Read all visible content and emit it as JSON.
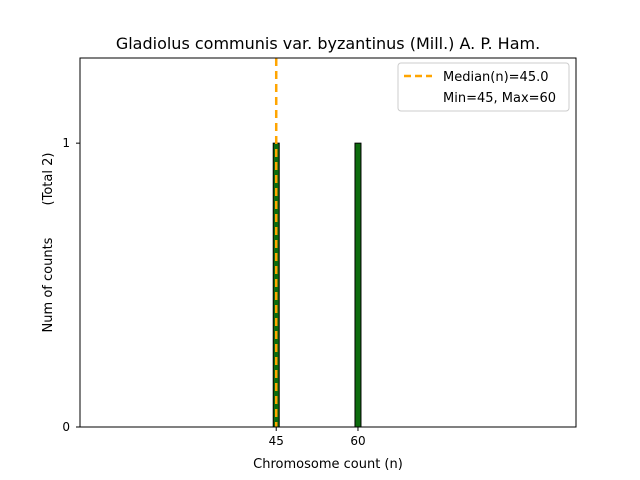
{
  "chart_data": {
    "type": "bar",
    "title": "Gladiolus communis var. byzantinus (Mill.) A. P. Ham.",
    "xlabel": "Chromosome count (n)",
    "ylabel": "Num of counts",
    "ylabel_note": "(Total 2)",
    "x_ticks": [
      45,
      60
    ],
    "y_ticks": [
      0,
      1
    ],
    "xlim": [
      9,
      100
    ],
    "ylim": [
      0,
      1.3
    ],
    "bars": [
      {
        "x": 45,
        "value": 1
      },
      {
        "x": 60,
        "value": 1
      }
    ],
    "median": 45.0,
    "min": 45,
    "max": 60,
    "legend": {
      "placement": "upper right",
      "entries": [
        {
          "label": "Median(n)=45.0",
          "style": "dashed-line"
        },
        {
          "label": "Min=45, Max=60",
          "style": "none"
        }
      ]
    },
    "grid": false
  },
  "colors": {
    "bar_fill": "#0d6b0d",
    "bar_edge": "#000000",
    "median_line": "#ffa500",
    "axis": "#000000"
  }
}
